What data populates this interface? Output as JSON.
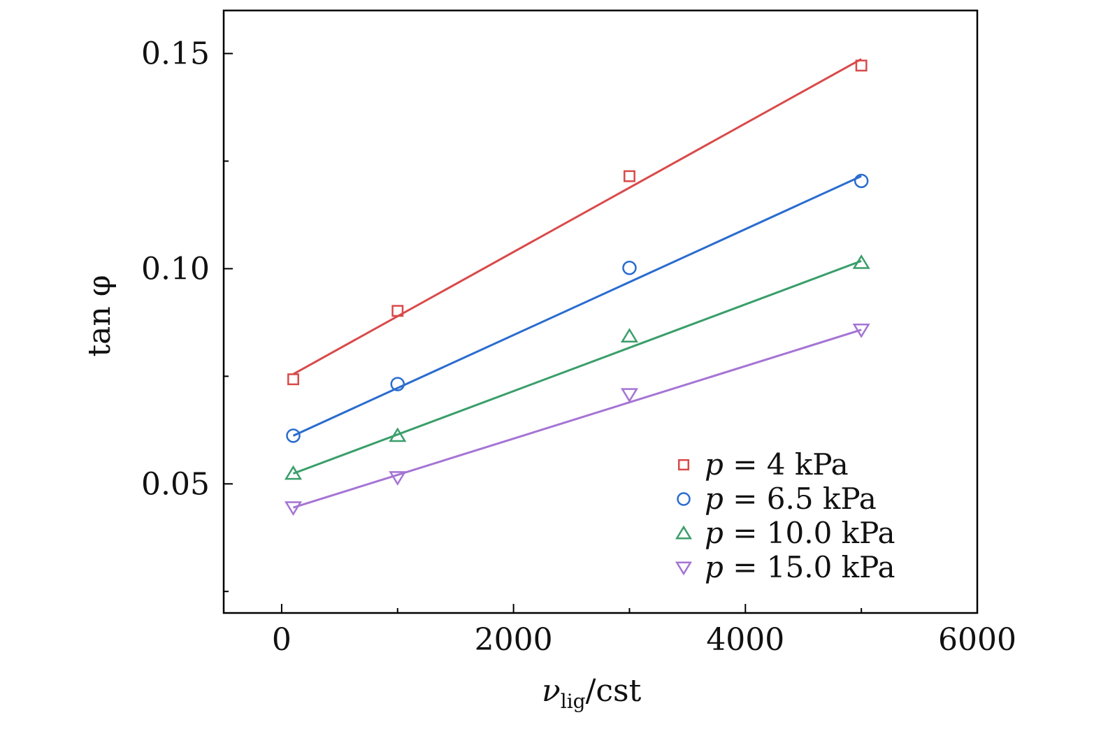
{
  "chart_data": {
    "type": "scatter",
    "x_ticks": [
      0,
      2000,
      4000,
      6000
    ],
    "y_ticks": [
      0.05,
      0.1,
      0.15
    ],
    "x_minor_ticks": [
      1000,
      3000,
      5000
    ],
    "y_minor_ticks": [
      0.025,
      0.075,
      0.125
    ],
    "x_tick_labels": [
      "0",
      "2000",
      "4000",
      "6000"
    ],
    "y_tick_labels": [
      "0.05",
      "0.10",
      "0.15"
    ],
    "xlim": [
      -500,
      6000
    ],
    "ylim": [
      0.02,
      0.16
    ],
    "xlabel_main": "ν",
    "xlabel_sub": "lig",
    "xlabel_unit": "/cst",
    "ylabel": "tan φ",
    "grid": false,
    "legend_position": "bottom-right",
    "x": [
      100,
      1000,
      3000,
      5000
    ],
    "series": [
      {
        "name_var": "p",
        "name_rest": " = 4 kPa",
        "marker": "square",
        "color": "#d94a4a",
        "values": [
          0.0743,
          0.0902,
          0.1215,
          0.1472
        ],
        "fit": [
          [
            100,
            0.0755
          ],
          [
            5000,
            0.1487
          ]
        ]
      },
      {
        "name_var": "p",
        "name_rest": " = 6.5 kPa",
        "marker": "circle",
        "color": "#2a6ccf",
        "values": [
          0.0612,
          0.0732,
          0.1002,
          0.1204
        ],
        "fit": [
          [
            100,
            0.0612
          ],
          [
            5000,
            0.1215
          ]
        ]
      },
      {
        "name_var": "p",
        "name_rest": " = 10.0 kPa",
        "marker": "triangle-up",
        "color": "#3a9e6a",
        "values": [
          0.0524,
          0.0612,
          0.0843,
          0.1014
        ],
        "fit": [
          [
            100,
            0.0524
          ],
          [
            5000,
            0.1018
          ]
        ]
      },
      {
        "name_var": "p",
        "name_rest": " = 15.0 kPa",
        "marker": "triangle-down",
        "color": "#a574d4",
        "values": [
          0.0445,
          0.0515,
          0.0708,
          0.0858
        ],
        "fit": [
          [
            100,
            0.0445
          ],
          [
            5000,
            0.0858
          ]
        ]
      }
    ]
  }
}
